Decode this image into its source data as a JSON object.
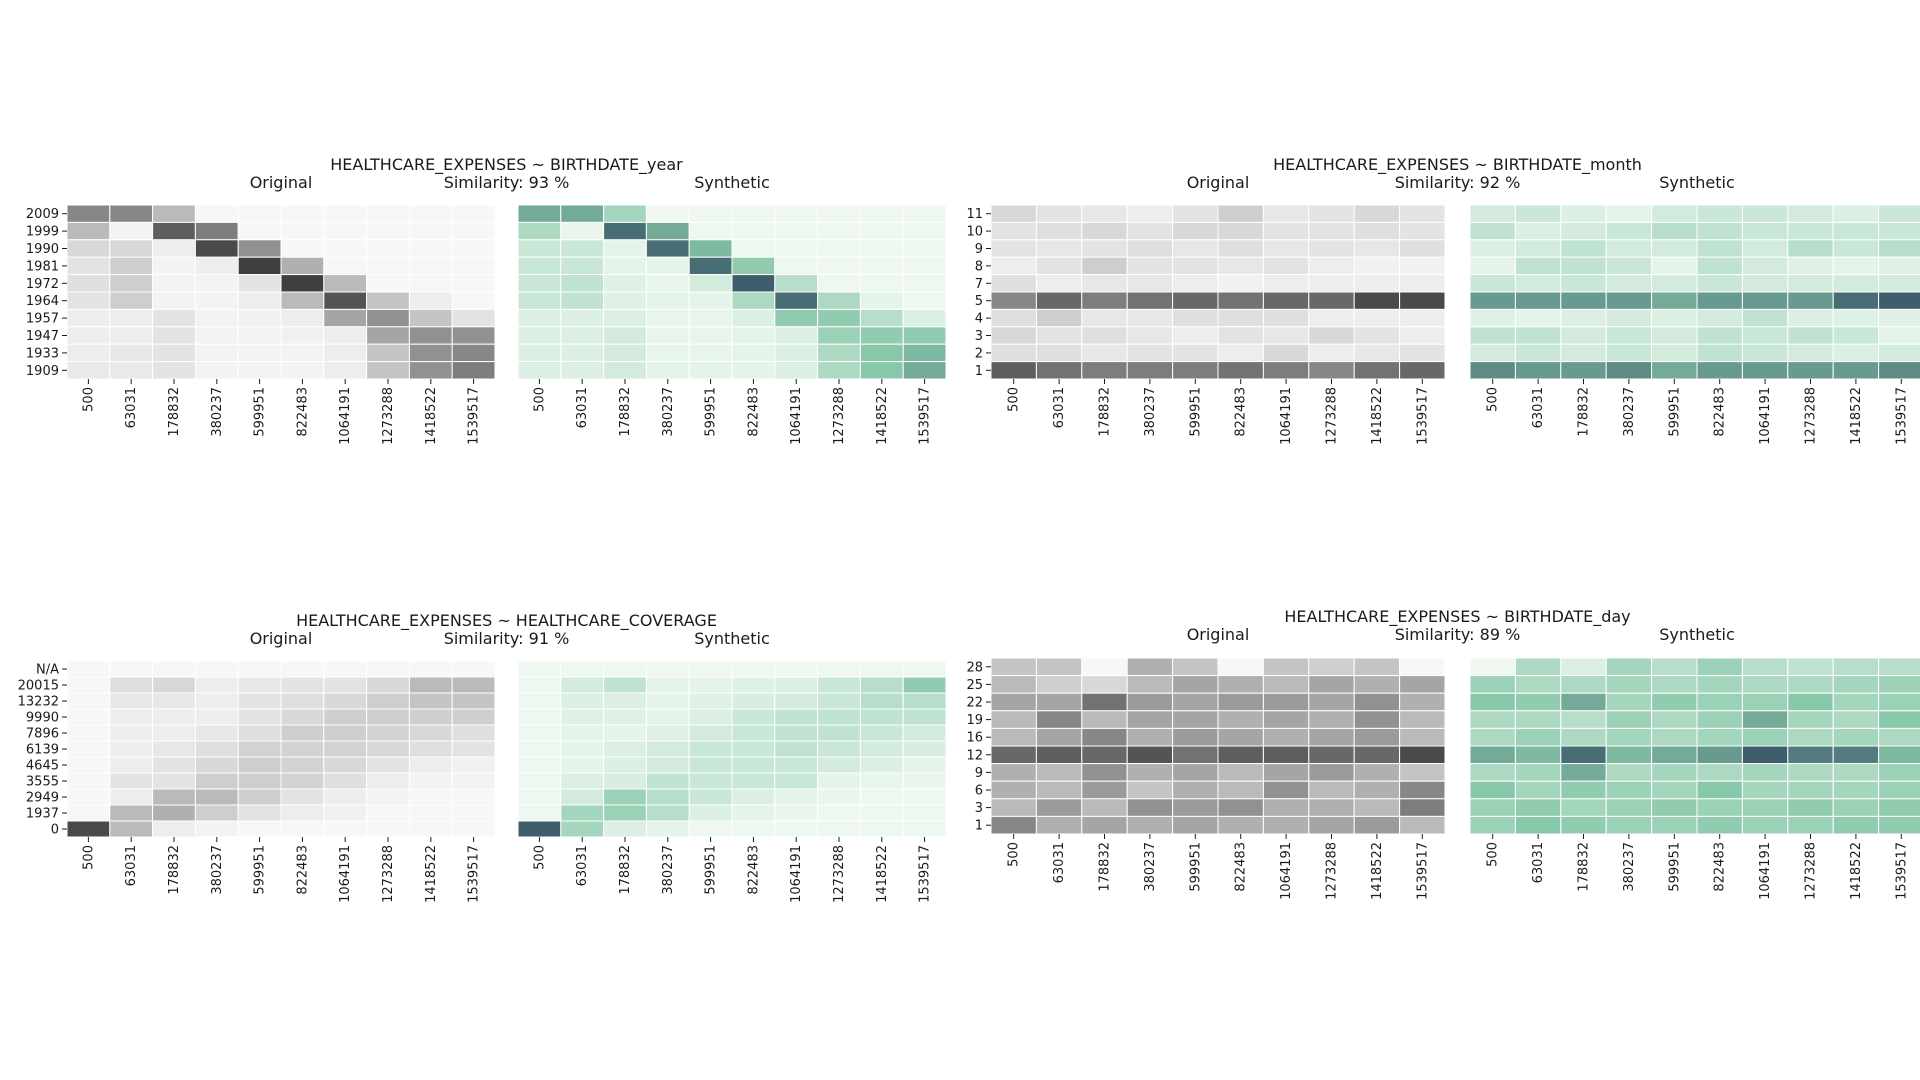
{
  "colors": {
    "original_low": "#f7f7f7",
    "original_high": "#2b2b2b",
    "synthetic_low": "#eef8f0",
    "synthetic_mid": "#88c8aa",
    "synthetic_high": "#2a3f5a",
    "cell_border": "#ffffff"
  },
  "chart_data": [
    {
      "type": "heatmap",
      "title": "HEALTHCARE_EXPENSES ~ BIRTHDATE_year",
      "left_label": "Original",
      "similarity": "Similarity: 93 %",
      "right_label": "Synthetic",
      "x_ticks": [
        "500",
        "63031",
        "178832",
        "380237",
        "599951",
        "822483",
        "1064191",
        "1273288",
        "1418522",
        "1539517"
      ],
      "y_ticks": [
        "2009",
        "1999",
        "1990",
        "1981",
        "1972",
        "1964",
        "1957",
        "1947",
        "1933",
        "1909"
      ],
      "original": [
        [
          0.55,
          0.55,
          0.3,
          0,
          0,
          0,
          0,
          0,
          0,
          0
        ],
        [
          0.3,
          0.02,
          0.75,
          0.6,
          0,
          0,
          0,
          0,
          0,
          0
        ],
        [
          0.15,
          0.15,
          0.05,
          0.85,
          0.5,
          0,
          0,
          0,
          0,
          0
        ],
        [
          0.1,
          0.2,
          0.02,
          0.05,
          0.9,
          0.35,
          0,
          0,
          0,
          0
        ],
        [
          0.12,
          0.2,
          0.02,
          0.02,
          0.1,
          0.9,
          0.3,
          0,
          0,
          0
        ],
        [
          0.1,
          0.2,
          0.02,
          0.02,
          0.05,
          0.3,
          0.8,
          0.25,
          0.05,
          0
        ],
        [
          0.05,
          0.05,
          0.1,
          0.02,
          0.03,
          0.05,
          0.4,
          0.5,
          0.25,
          0.1
        ],
        [
          0.05,
          0.05,
          0.1,
          0.02,
          0.02,
          0.03,
          0.05,
          0.4,
          0.5,
          0.5
        ],
        [
          0.05,
          0.08,
          0.1,
          0.02,
          0.02,
          0.02,
          0.05,
          0.25,
          0.5,
          0.55
        ],
        [
          0.07,
          0.07,
          0.1,
          0.02,
          0.02,
          0.02,
          0.05,
          0.25,
          0.5,
          0.6
        ]
      ],
      "synthetic": [
        [
          0.65,
          0.65,
          0.4,
          0,
          0,
          0,
          0,
          0,
          0,
          0
        ],
        [
          0.35,
          0.02,
          0.85,
          0.65,
          0,
          0,
          0,
          0,
          0,
          0
        ],
        [
          0.2,
          0.2,
          0.05,
          0.85,
          0.6,
          0,
          0,
          0,
          0,
          0
        ],
        [
          0.2,
          0.2,
          0.05,
          0.05,
          0.85,
          0.5,
          0,
          0,
          0,
          0
        ],
        [
          0.2,
          0.25,
          0.08,
          0.03,
          0.15,
          0.9,
          0.3,
          0,
          0,
          0
        ],
        [
          0.2,
          0.25,
          0.08,
          0.05,
          0.05,
          0.35,
          0.85,
          0.35,
          0.05,
          0
        ],
        [
          0.1,
          0.1,
          0.1,
          0.03,
          0.03,
          0.1,
          0.5,
          0.5,
          0.3,
          0.1
        ],
        [
          0.1,
          0.1,
          0.15,
          0.03,
          0.03,
          0.05,
          0.1,
          0.45,
          0.5,
          0.5
        ],
        [
          0.1,
          0.1,
          0.15,
          0.03,
          0.03,
          0.05,
          0.1,
          0.35,
          0.55,
          0.6
        ],
        [
          0.1,
          0.1,
          0.15,
          0.05,
          0.05,
          0.05,
          0.1,
          0.35,
          0.55,
          0.65
        ]
      ]
    },
    {
      "type": "heatmap",
      "title": "HEALTHCARE_EXPENSES ~ BIRTHDATE_month",
      "left_label": "Original",
      "similarity": "Similarity: 92 %",
      "right_label": "Synthetic",
      "x_ticks": [
        "500",
        "63031",
        "178832",
        "380237",
        "599951",
        "822483",
        "1064191",
        "1273288",
        "1418522",
        "1539517"
      ],
      "y_ticks": [
        "11",
        "10",
        "9",
        "8",
        "7",
        "5",
        "4",
        "3",
        "2",
        "1"
      ],
      "original": [
        [
          0.15,
          0.1,
          0.08,
          0.05,
          0.1,
          0.2,
          0.08,
          0.1,
          0.15,
          0.1
        ],
        [
          0.1,
          0.12,
          0.15,
          0.1,
          0.15,
          0.15,
          0.1,
          0.1,
          0.12,
          0.1
        ],
        [
          0.1,
          0.08,
          0.1,
          0.12,
          0.08,
          0.12,
          0.08,
          0.1,
          0.08,
          0.12
        ],
        [
          0.05,
          0.1,
          0.2,
          0.1,
          0.1,
          0.08,
          0.1,
          0.05,
          0.03,
          0.03
        ],
        [
          0.12,
          0.05,
          0.08,
          0.08,
          0.05,
          0.03,
          0.05,
          0.05,
          0.05,
          0.05
        ],
        [
          0.55,
          0.7,
          0.6,
          0.65,
          0.7,
          0.65,
          0.7,
          0.7,
          0.85,
          0.85
        ],
        [
          0.12,
          0.2,
          0.08,
          0.08,
          0.12,
          0.12,
          0.12,
          0.05,
          0.05,
          0.05
        ],
        [
          0.15,
          0.1,
          0.12,
          0.08,
          0.05,
          0.1,
          0.08,
          0.15,
          0.1,
          0.05
        ],
        [
          0.12,
          0.12,
          0.08,
          0.1,
          0.1,
          0.05,
          0.15,
          0.05,
          0.08,
          0.1
        ],
        [
          0.75,
          0.65,
          0.6,
          0.6,
          0.6,
          0.65,
          0.6,
          0.55,
          0.65,
          0.7
        ]
      ],
      "synthetic": [
        [
          0.15,
          0.2,
          0.1,
          0.05,
          0.15,
          0.2,
          0.2,
          0.15,
          0.1,
          0.2
        ],
        [
          0.25,
          0.1,
          0.15,
          0.2,
          0.3,
          0.25,
          0.2,
          0.2,
          0.2,
          0.2
        ],
        [
          0.1,
          0.15,
          0.25,
          0.15,
          0.15,
          0.25,
          0.15,
          0.3,
          0.2,
          0.3
        ],
        [
          0.05,
          0.25,
          0.25,
          0.2,
          0.05,
          0.25,
          0.15,
          0.08,
          0.05,
          0.08
        ],
        [
          0.2,
          0.15,
          0.2,
          0.15,
          0.15,
          0.2,
          0.15,
          0.15,
          0.15,
          0.15
        ],
        [
          0.7,
          0.7,
          0.7,
          0.7,
          0.65,
          0.7,
          0.7,
          0.7,
          0.85,
          0.9
        ],
        [
          0.08,
          0.05,
          0.1,
          0.15,
          0.1,
          0.15,
          0.25,
          0.1,
          0.08,
          0.08
        ],
        [
          0.25,
          0.25,
          0.15,
          0.2,
          0.15,
          0.25,
          0.2,
          0.25,
          0.2,
          0.05
        ],
        [
          0.15,
          0.2,
          0.15,
          0.2,
          0.15,
          0.25,
          0.2,
          0.15,
          0.1,
          0.15
        ],
        [
          0.75,
          0.7,
          0.7,
          0.75,
          0.65,
          0.7,
          0.7,
          0.7,
          0.7,
          0.75
        ]
      ]
    },
    {
      "type": "heatmap",
      "title": "HEALTHCARE_EXPENSES ~ HEALTHCARE_COVERAGE",
      "left_label": "Original",
      "similarity": "Similarity: 91 %",
      "right_label": "Synthetic",
      "x_ticks": [
        "500",
        "63031",
        "178832",
        "380237",
        "599951",
        "822483",
        "1064191",
        "1273288",
        "1418522",
        "1539517"
      ],
      "y_ticks": [
        "N/A",
        "20015",
        "13232",
        "9990",
        "7896",
        "6139",
        "4645",
        "3555",
        "2949",
        "1937",
        "0"
      ],
      "original": [
        [
          0,
          0,
          0,
          0,
          0,
          0,
          0,
          0,
          0,
          0
        ],
        [
          0,
          0.12,
          0.15,
          0.05,
          0.08,
          0.1,
          0.1,
          0.15,
          0.3,
          0.3
        ],
        [
          0,
          0.08,
          0.08,
          0.05,
          0.1,
          0.12,
          0.15,
          0.2,
          0.25,
          0.25
        ],
        [
          0,
          0.05,
          0.05,
          0.05,
          0.1,
          0.15,
          0.2,
          0.2,
          0.2,
          0.2
        ],
        [
          0,
          0.05,
          0.05,
          0.08,
          0.12,
          0.2,
          0.2,
          0.18,
          0.15,
          0.12
        ],
        [
          0,
          0.05,
          0.08,
          0.12,
          0.18,
          0.18,
          0.18,
          0.15,
          0.12,
          0.1
        ],
        [
          0,
          0.05,
          0.1,
          0.15,
          0.2,
          0.18,
          0.15,
          0.1,
          0.05,
          0.03
        ],
        [
          0,
          0.1,
          0.1,
          0.2,
          0.2,
          0.18,
          0.12,
          0.05,
          0.02,
          0.02
        ],
        [
          0,
          0.05,
          0.3,
          0.3,
          0.2,
          0.1,
          0.05,
          0.02,
          0,
          0
        ],
        [
          0,
          0.3,
          0.35,
          0.2,
          0.1,
          0.05,
          0.03,
          0,
          0,
          0
        ],
        [
          0.85,
          0.3,
          0.05,
          0.02,
          0,
          0,
          0,
          0,
          0,
          0
        ]
      ],
      "synthetic": [
        [
          0,
          0,
          0,
          0,
          0,
          0,
          0,
          0,
          0,
          0
        ],
        [
          0,
          0.15,
          0.25,
          0.05,
          0.05,
          0.08,
          0.1,
          0.2,
          0.3,
          0.5
        ],
        [
          0,
          0.1,
          0.1,
          0.05,
          0.08,
          0.12,
          0.15,
          0.2,
          0.3,
          0.3
        ],
        [
          0,
          0.08,
          0.08,
          0.05,
          0.1,
          0.2,
          0.25,
          0.25,
          0.25,
          0.25
        ],
        [
          0,
          0.05,
          0.05,
          0.08,
          0.15,
          0.2,
          0.25,
          0.25,
          0.2,
          0.15
        ],
        [
          0,
          0.05,
          0.1,
          0.15,
          0.2,
          0.2,
          0.25,
          0.2,
          0.15,
          0.12
        ],
        [
          0,
          0.05,
          0.1,
          0.15,
          0.2,
          0.2,
          0.2,
          0.15,
          0.1,
          0.05
        ],
        [
          0,
          0.1,
          0.12,
          0.25,
          0.2,
          0.2,
          0.2,
          0.05,
          0.03,
          0.02
        ],
        [
          0,
          0.15,
          0.45,
          0.3,
          0.2,
          0.1,
          0.05,
          0.02,
          0,
          0
        ],
        [
          0,
          0.4,
          0.45,
          0.3,
          0.1,
          0.05,
          0.02,
          0,
          0,
          0
        ],
        [
          0.9,
          0.4,
          0.1,
          0.05,
          0,
          0,
          0,
          0,
          0,
          0
        ]
      ]
    },
    {
      "type": "heatmap",
      "title": "HEALTHCARE_EXPENSES ~ BIRTHDATE_day",
      "left_label": "Original",
      "similarity": "Similarity: 89 %",
      "right_label": "Synthetic",
      "x_ticks": [
        "500",
        "63031",
        "178832",
        "380237",
        "599951",
        "822483",
        "1064191",
        "1273288",
        "1418522",
        "1539517"
      ],
      "y_ticks": [
        "28",
        "25",
        "22",
        "19",
        "16",
        "12",
        "9",
        "6",
        "3",
        "1"
      ],
      "original": [
        [
          0.25,
          0.25,
          0,
          0.35,
          0.25,
          0,
          0.25,
          0.2,
          0.25,
          0
        ],
        [
          0.3,
          0.2,
          0.15,
          0.3,
          0.4,
          0.35,
          0.3,
          0.4,
          0.35,
          0.4
        ],
        [
          0.4,
          0.4,
          0.65,
          0.45,
          0.4,
          0.45,
          0.45,
          0.4,
          0.5,
          0.35
        ],
        [
          0.3,
          0.55,
          0.3,
          0.4,
          0.4,
          0.35,
          0.4,
          0.35,
          0.5,
          0.3
        ],
        [
          0.3,
          0.4,
          0.55,
          0.35,
          0.45,
          0.4,
          0.35,
          0.4,
          0.45,
          0.3
        ],
        [
          0.7,
          0.75,
          0.7,
          0.8,
          0.65,
          0.75,
          0.75,
          0.7,
          0.7,
          0.85
        ],
        [
          0.35,
          0.3,
          0.5,
          0.35,
          0.4,
          0.3,
          0.4,
          0.45,
          0.35,
          0.25
        ],
        [
          0.35,
          0.3,
          0.45,
          0.25,
          0.35,
          0.3,
          0.5,
          0.3,
          0.35,
          0.55
        ],
        [
          0.3,
          0.45,
          0.3,
          0.5,
          0.45,
          0.5,
          0.35,
          0.35,
          0.3,
          0.6
        ],
        [
          0.55,
          0.35,
          0.4,
          0.35,
          0.4,
          0.35,
          0.35,
          0.4,
          0.45,
          0.3
        ]
      ],
      "synthetic": [
        [
          0,
          0.35,
          0.1,
          0.4,
          0.3,
          0.45,
          0.3,
          0.25,
          0.3,
          0.3
        ],
        [
          0.45,
          0.35,
          0.35,
          0.4,
          0.35,
          0.4,
          0.35,
          0.35,
          0.4,
          0.45
        ],
        [
          0.55,
          0.5,
          0.65,
          0.4,
          0.5,
          0.45,
          0.45,
          0.55,
          0.4,
          0.45
        ],
        [
          0.35,
          0.35,
          0.3,
          0.45,
          0.35,
          0.45,
          0.65,
          0.4,
          0.35,
          0.55
        ],
        [
          0.35,
          0.45,
          0.35,
          0.4,
          0.35,
          0.4,
          0.45,
          0.35,
          0.4,
          0.35
        ],
        [
          0.65,
          0.6,
          0.85,
          0.6,
          0.65,
          0.7,
          0.9,
          0.8,
          0.8,
          0.6
        ],
        [
          0.35,
          0.4,
          0.65,
          0.35,
          0.4,
          0.35,
          0.4,
          0.35,
          0.35,
          0.45
        ],
        [
          0.55,
          0.4,
          0.5,
          0.45,
          0.4,
          0.55,
          0.4,
          0.4,
          0.4,
          0.45
        ],
        [
          0.45,
          0.5,
          0.4,
          0.45,
          0.5,
          0.45,
          0.45,
          0.5,
          0.45,
          0.5
        ],
        [
          0.45,
          0.55,
          0.5,
          0.45,
          0.45,
          0.5,
          0.45,
          0.45,
          0.5,
          0.5
        ]
      ]
    }
  ]
}
